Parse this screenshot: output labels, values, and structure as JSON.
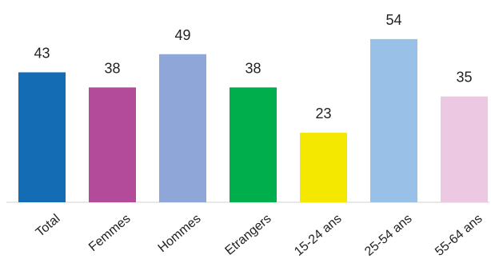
{
  "chart_data": {
    "type": "bar",
    "categories": [
      "Total",
      "Femmes",
      "Hommes",
      "Etrangers",
      "15-24 ans",
      "25-54 ans",
      "55-64 ans"
    ],
    "values": [
      43,
      38,
      49,
      38,
      23,
      54,
      35
    ],
    "colors": [
      "#136cb4",
      "#b44b9a",
      "#8ea6d8",
      "#00ae4b",
      "#f4e800",
      "#99c1e8",
      "#edc8e2"
    ],
    "ylim": [
      0,
      56
    ],
    "grid": false,
    "legend": "none"
  }
}
